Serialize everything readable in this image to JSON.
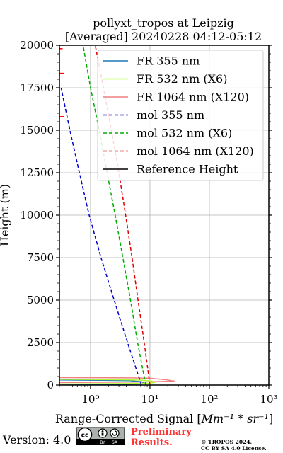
{
  "chart_data": {
    "type": "line",
    "title_line1": "pollyxt_tropos at Leipzig",
    "title_line2": "[Averaged] 20240228 04:12-05:12",
    "xlabel_prefix": "Range-Corrected Signal [",
    "xlabel_units": "Mm⁻¹ * sr⁻¹",
    "xlabel_suffix": "]",
    "ylabel": "Height (m)",
    "x_scale": "log",
    "xlim": [
      0.3,
      1000
    ],
    "ylim": [
      0,
      20000
    ],
    "grid": true,
    "legend_placement": "top-right",
    "x_ticks": [
      {
        "value": 1,
        "label": "10⁰"
      },
      {
        "value": 10,
        "label": "10¹"
      },
      {
        "value": 100,
        "label": "10²"
      },
      {
        "value": 1000,
        "label": "10³"
      }
    ],
    "y_ticks": [
      0,
      2500,
      5000,
      7500,
      10000,
      12500,
      15000,
      17500,
      20000
    ],
    "series": [
      {
        "name": "FR 355 nm",
        "color": "#1f77b4",
        "style": "solid",
        "points": [
          [
            0.3,
            0
          ],
          [
            7.0,
            60
          ],
          [
            7.8,
            120
          ],
          [
            7.2,
            200
          ],
          [
            4.5,
            260
          ],
          [
            1.5,
            280
          ],
          [
            0.3,
            300
          ]
        ]
      },
      {
        "name": "FR 532 nm (X6)",
        "color": "#adff2f",
        "style": "solid",
        "points": [
          [
            0.3,
            60
          ],
          [
            9.5,
            100
          ],
          [
            12.0,
            160
          ],
          [
            10.5,
            240
          ],
          [
            7.0,
            290
          ],
          [
            2.0,
            320
          ],
          [
            0.3,
            340
          ]
        ]
      },
      {
        "name": "FR 1064 nm (X120)",
        "color": "#f08080",
        "style": "solid",
        "points": [
          [
            0.3,
            150
          ],
          [
            8.0,
            180
          ],
          [
            26.0,
            230
          ],
          [
            18.0,
            320
          ],
          [
            10.0,
            400
          ],
          [
            5.0,
            420
          ],
          [
            0.3,
            440
          ]
        ]
      },
      {
        "name": "mol 355 nm",
        "color": "#0000cd",
        "style": "dashed",
        "points": [
          [
            7.2,
            0
          ],
          [
            4.2,
            2500
          ],
          [
            2.5,
            5000
          ],
          [
            1.5,
            7500
          ],
          [
            0.95,
            10000
          ],
          [
            0.65,
            12500
          ],
          [
            0.45,
            15000
          ],
          [
            0.32,
            17500
          ]
        ]
      },
      {
        "name": "mol 532 nm (X6)",
        "color": "#00aa00",
        "style": "dashed",
        "points": [
          [
            8.5,
            0
          ],
          [
            6.2,
            2500
          ],
          [
            4.7,
            5000
          ],
          [
            3.5,
            7500
          ],
          [
            2.6,
            10000
          ],
          [
            1.9,
            12500
          ],
          [
            1.4,
            15000
          ],
          [
            1.0,
            17500
          ],
          [
            0.75,
            20000
          ]
        ]
      },
      {
        "name": "mol 1064 nm (X120)",
        "color": "#dd0000",
        "style": "dashed",
        "points": [
          [
            10.0,
            0
          ],
          [
            8.0,
            2500
          ],
          [
            6.3,
            5000
          ],
          [
            5.0,
            7500
          ],
          [
            3.9,
            10000
          ],
          [
            3.0,
            12500
          ],
          [
            2.25,
            15000
          ],
          [
            1.65,
            17500
          ],
          [
            1.2,
            20000
          ]
        ]
      },
      {
        "name": "Reference Height",
        "color": "#000000",
        "style": "solid",
        "points": []
      }
    ],
    "reference_marks": [
      {
        "color": "#ff0000",
        "y": 19800,
        "x": [
          0.3,
          0.34
        ]
      },
      {
        "color": "#ff0000",
        "y": 18350,
        "x": [
          0.3,
          0.36
        ]
      },
      {
        "color": "#ff0000",
        "y": 15800,
        "x": [
          0.3,
          0.36
        ]
      }
    ]
  },
  "footer": {
    "version": "Version: 4.0",
    "license_badge": {
      "by_label": "BY",
      "sa_label": "SA",
      "cc_label": "cc",
      "icon": "creative-commons-icon"
    },
    "preliminary_line1": "Preliminary",
    "preliminary_line2": "Results.",
    "preliminary_color": "#ff3333",
    "copyright_line1": "© TROPOS 2024.",
    "copyright_line2": "CC BY SA 4.0 License."
  }
}
